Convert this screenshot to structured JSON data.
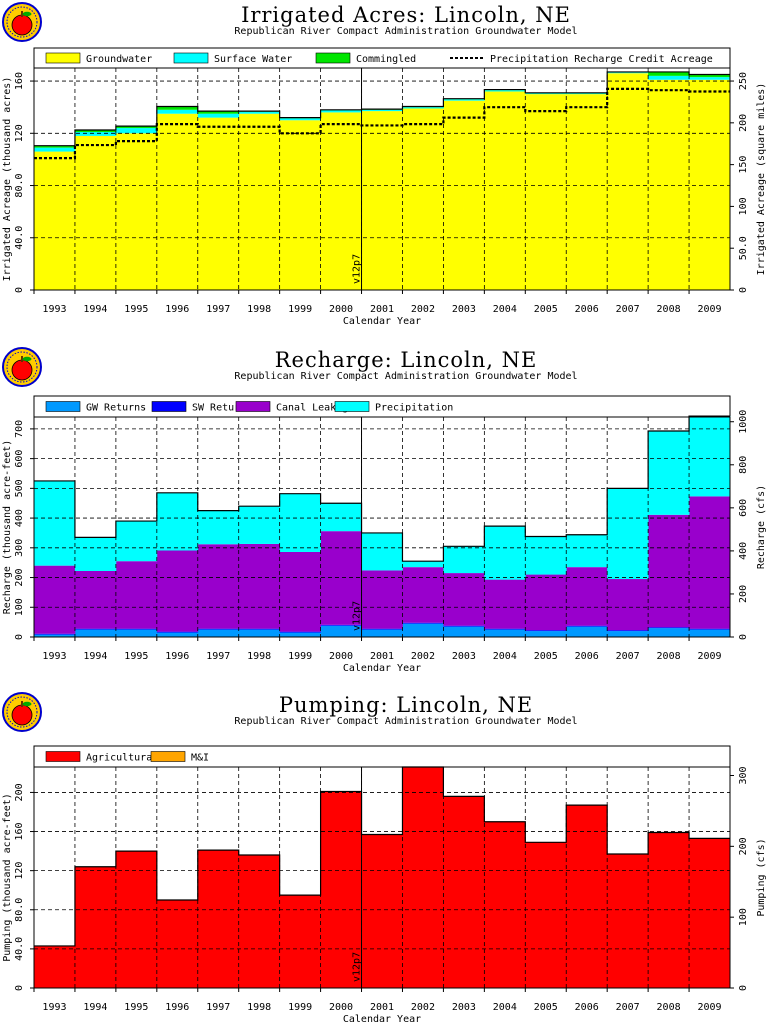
{
  "chart_data": [
    {
      "type": "area",
      "title": "Irrigated  Acres:  Lincoln,  NE",
      "subtitle": "Republican  River  Compact  Administration  Groundwater  Model",
      "xlabel": "Calendar  Year",
      "ylabel": "Irrigated  Acreage  (thousand  acres)",
      "y2label": "Irrigated  Acreage  (square  miles)",
      "categories": [
        "1993",
        "1994",
        "1995",
        "1996",
        "1997",
        "1998",
        "1999",
        "2000",
        "2001",
        "2002",
        "2003",
        "2004",
        "2005",
        "2006",
        "2007",
        "2008",
        "2009"
      ],
      "ylim": [
        0,
        170
      ],
      "yticks": [
        0,
        40,
        80,
        120,
        160
      ],
      "ytick_labels": [
        "0",
        "40.0",
        "80.0",
        "120",
        "160"
      ],
      "y2lim": [
        0,
        265.6
      ],
      "y2ticks": [
        0,
        50,
        100,
        150,
        200,
        250
      ],
      "y2tick_labels": [
        "0",
        "50.0",
        "100",
        "150",
        "200",
        "250"
      ],
      "grid": true,
      "legend_position": "top",
      "annotation": "v12p7",
      "series": [
        {
          "name": "Groundwater",
          "color": "#ffff00",
          "values": [
            106,
            118,
            120,
            135,
            132,
            135,
            130,
            136,
            137,
            139,
            145,
            152,
            150,
            150,
            166,
            161,
            161
          ]
        },
        {
          "name": "Surface Water",
          "color": "#00ffff",
          "values": [
            3,
            3,
            4,
            3,
            3,
            1.5,
            1.5,
            1.5,
            1,
            1,
            1,
            1,
            0.5,
            0.5,
            0.5,
            3,
            2
          ]
        },
        {
          "name": "Commingled",
          "color": "#00e600",
          "values": [
            1.5,
            1.5,
            1.5,
            2.5,
            2,
            0.5,
            0.5,
            0.5,
            0.5,
            0.5,
            0.5,
            0.5,
            0.5,
            0.5,
            0.5,
            3,
            2
          ]
        },
        {
          "name": "Precipitation  Recharge  Credit  Acreage",
          "color": "#000000",
          "style": "dotted-step",
          "values": [
            101,
            111,
            114,
            127,
            125,
            125,
            120,
            127,
            126,
            127,
            132,
            140,
            137,
            140,
            154,
            153,
            152
          ]
        }
      ]
    },
    {
      "type": "area",
      "title": "Recharge:  Lincoln,  NE",
      "subtitle": "Republican  River  Compact  Administration  Groundwater  Model",
      "xlabel": "Calendar  Year",
      "ylabel": "Recharge  (thousand  acre-feet)",
      "y2label": "Recharge  (cfs)",
      "categories": [
        "1993",
        "1994",
        "1995",
        "1996",
        "1997",
        "1998",
        "1999",
        "2000",
        "2001",
        "2002",
        "2003",
        "2004",
        "2005",
        "2006",
        "2007",
        "2008",
        "2009"
      ],
      "ylim": [
        0,
        740
      ],
      "yticks": [
        0,
        100,
        200,
        300,
        400,
        500,
        600,
        700
      ],
      "ytick_labels": [
        "0",
        "100",
        "200",
        "300",
        "400",
        "500",
        "600",
        "700"
      ],
      "y2lim": [
        0,
        1022
      ],
      "y2ticks": [
        0,
        200,
        400,
        600,
        800,
        1000
      ],
      "y2tick_labels": [
        "0",
        "200",
        "400",
        "600",
        "800",
        "1000"
      ],
      "grid": true,
      "legend_position": "top",
      "annotation": "v12p7",
      "series": [
        {
          "name": "GW  Returns",
          "color": "#0099ff",
          "values": [
            8,
            25,
            25,
            15,
            25,
            25,
            15,
            38,
            25,
            45,
            35,
            25,
            20,
            35,
            20,
            30,
            25
          ]
        },
        {
          "name": "SW  Returns",
          "color": "#0000ff",
          "values": [
            3,
            3,
            3,
            3,
            3,
            3,
            3,
            3,
            3,
            3,
            3,
            3,
            3,
            3,
            3,
            3,
            3
          ]
        },
        {
          "name": "Canal  Leakage",
          "color": "#9900cc",
          "values": [
            229,
            194,
            227,
            273,
            284,
            285,
            268,
            315,
            196,
            187,
            177,
            165,
            187,
            197,
            172,
            378,
            445
          ]
        },
        {
          "name": "Precipitation",
          "color": "#00ffff",
          "values": [
            285,
            113,
            135,
            194,
            113,
            127,
            196,
            94,
            126,
            20,
            90,
            180,
            128,
            109,
            305,
            282,
            270
          ]
        }
      ]
    },
    {
      "type": "area",
      "title": "Pumping:  Lincoln,  NE",
      "subtitle": "Republican  River  Compact  Administration  Groundwater  Model",
      "xlabel": "Calendar  Year",
      "ylabel": "Pumping  (thousand  acre-feet)",
      "y2label": "Pumping  (cfs)",
      "categories": [
        "1993",
        "1994",
        "1995",
        "1996",
        "1997",
        "1998",
        "1999",
        "2000",
        "2001",
        "2002",
        "2003",
        "2004",
        "2005",
        "2006",
        "2007",
        "2008",
        "2009"
      ],
      "ylim": [
        0,
        226
      ],
      "yticks": [
        0,
        40,
        80,
        120,
        160,
        200
      ],
      "ytick_labels": [
        "0",
        "40.0",
        "80.0",
        "120",
        "160",
        "200"
      ],
      "y2lim": [
        0,
        312
      ],
      "y2ticks": [
        0,
        100,
        200,
        300
      ],
      "y2tick_labels": [
        "0",
        "100",
        "200",
        "300"
      ],
      "grid": true,
      "legend_position": "top",
      "annotation": "v12p7",
      "series": [
        {
          "name": "Agricultural",
          "color": "#ff0000",
          "values": [
            43,
            124,
            140,
            90,
            141,
            136,
            95,
            201,
            157,
            226,
            196,
            170,
            149,
            187,
            137,
            159,
            153
          ]
        },
        {
          "name": "M&I",
          "color": "#ffa500",
          "values": [
            0,
            0,
            0,
            0,
            0,
            0,
            0,
            0,
            0,
            0,
            0,
            0,
            0,
            0,
            0,
            0,
            0
          ]
        }
      ]
    }
  ]
}
